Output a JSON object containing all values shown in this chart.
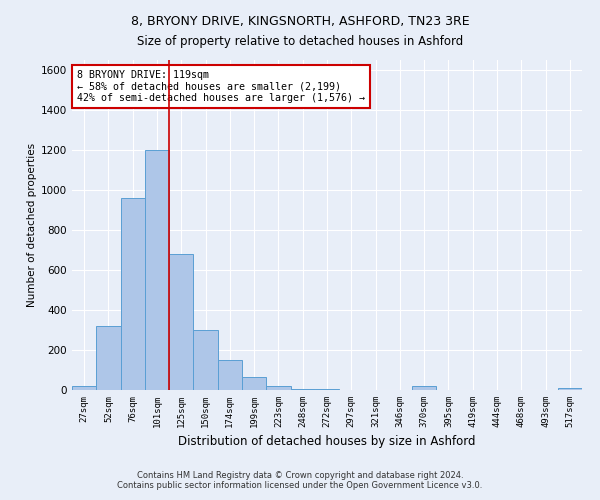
{
  "title_line1": "8, BRYONY DRIVE, KINGSNORTH, ASHFORD, TN23 3RE",
  "title_line2": "Size of property relative to detached houses in Ashford",
  "xlabel": "Distribution of detached houses by size in Ashford",
  "ylabel": "Number of detached properties",
  "categories": [
    "27sqm",
    "52sqm",
    "76sqm",
    "101sqm",
    "125sqm",
    "150sqm",
    "174sqm",
    "199sqm",
    "223sqm",
    "248sqm",
    "272sqm",
    "297sqm",
    "321sqm",
    "346sqm",
    "370sqm",
    "395sqm",
    "419sqm",
    "444sqm",
    "468sqm",
    "493sqm",
    "517sqm"
  ],
  "values": [
    20,
    320,
    960,
    1200,
    680,
    300,
    150,
    65,
    20,
    5,
    5,
    0,
    0,
    0,
    20,
    0,
    0,
    0,
    0,
    0,
    10
  ],
  "bar_color": "#aec6e8",
  "bar_edge_color": "#5a9fd4",
  "property_line_color": "#cc0000",
  "annotation_text": "8 BRYONY DRIVE: 119sqm\n← 58% of detached houses are smaller (2,199)\n42% of semi-detached houses are larger (1,576) →",
  "annotation_box_color": "#ffffff",
  "annotation_box_edge": "#cc0000",
  "ylim": [
    0,
    1650
  ],
  "yticks": [
    0,
    200,
    400,
    600,
    800,
    1000,
    1200,
    1400,
    1600
  ],
  "footer_line1": "Contains HM Land Registry data © Crown copyright and database right 2024.",
  "footer_line2": "Contains public sector information licensed under the Open Government Licence v3.0.",
  "background_color": "#e8eef8",
  "grid_color": "#ffffff"
}
